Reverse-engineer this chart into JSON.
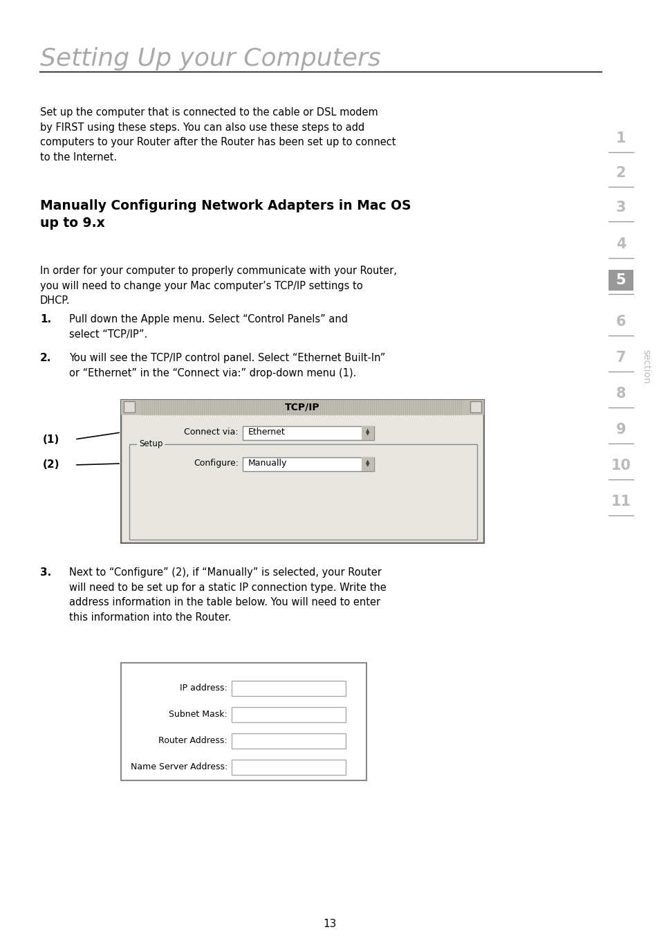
{
  "page_title": "Setting Up your Computers",
  "page_number": "13",
  "bg_color": "#ffffff",
  "title_color": "#aaaaaa",
  "body_color": "#000000",
  "section_numbers": [
    "1",
    "2",
    "3",
    "4",
    "5",
    "6",
    "7",
    "8",
    "9",
    "10",
    "11"
  ],
  "active_section": "5",
  "section_label": "section",
  "intro_text": "Set up the computer that is connected to the cable or DSL modem\nby FIRST using these steps. You can also use these steps to add\ncomputers to your Router after the Router has been set up to connect\nto the Internet.",
  "heading_line1": "Manually Configuring Network Adapters in Mac OS",
  "heading_line2": "up to 9.x",
  "para_text": "In order for your computer to properly communicate with your Router,\nyou will need to change your Mac computer’s TCP/IP settings to\nDHCP.",
  "step1_num": "1.",
  "step1_text": "Pull down the Apple menu. Select “Control Panels” and\nselect “TCP/IP”.",
  "step2_num": "2.",
  "step2_text": "You will see the TCP/IP control panel. Select “Ethernet Built-In”\nor “Ethernet” in the “Connect via:” drop-down menu (1).",
  "step3_num": "3.",
  "step3_text": "Next to “Configure” (2), if “Manually” is selected, your Router\nwill need to be set up for a static IP connection type. Write the\naddress information in the table below. You will need to enter\nthis information into the Router.",
  "label1": "(1)",
  "label2": "(2)",
  "tcpip_title": "TCP/IP",
  "connect_via_label": "Connect via:",
  "connect_via_value": "Ethernet",
  "setup_label": "Setup",
  "configure_label": "Configure:",
  "configure_value": "Manually",
  "table_fields": [
    "IP address:",
    "Subnet Mask:",
    "Router Address:",
    "Name Server Address:"
  ],
  "section_color_inactive": "#bbbbbb",
  "section_color_active_bg": "#999999",
  "section_color_active_txt": "#ffffff",
  "line_color": "#999999"
}
